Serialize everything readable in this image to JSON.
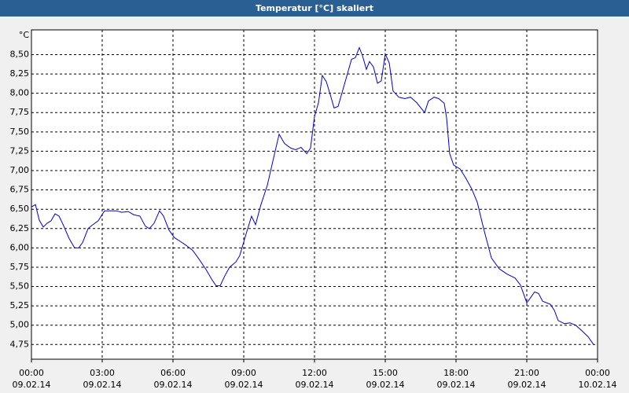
{
  "chart_data": {
    "type": "line",
    "title": "Temperatur [°C] skaliert",
    "y_unit": "°C",
    "x": [
      0,
      0.17,
      0.33,
      0.5,
      0.67,
      0.83,
      1,
      1.17,
      1.33,
      1.6,
      1.83,
      2,
      2.17,
      2.4,
      2.6,
      2.83,
      3.1,
      3.33,
      3.6,
      3.83,
      4.1,
      4.33,
      4.6,
      4.83,
      5,
      5.2,
      5.43,
      5.6,
      5.83,
      6.07,
      6.33,
      6.57,
      6.83,
      7.07,
      7.4,
      7.67,
      7.83,
      8,
      8.2,
      8.4,
      8.67,
      8.83,
      9.07,
      9.33,
      9.5,
      9.73,
      10,
      10.27,
      10.5,
      10.73,
      11,
      11.2,
      11.43,
      11.67,
      11.83,
      12,
      12.17,
      12.33,
      12.5,
      12.67,
      12.83,
      13,
      13.33,
      13.57,
      13.73,
      13.9,
      14.03,
      14.2,
      14.33,
      14.5,
      14.67,
      14.83,
      15,
      15.17,
      15.33,
      15.57,
      15.83,
      16.07,
      16.33,
      16.67,
      16.83,
      17.07,
      17.27,
      17.5,
      17.6,
      17.73,
      17.9,
      18.17,
      18.4,
      18.67,
      18.9,
      19.17,
      19.5,
      19.83,
      20.17,
      20.5,
      20.73,
      21,
      21.17,
      21.33,
      21.5,
      21.67,
      22,
      22.17,
      22.33,
      22.6,
      22.83,
      23.07,
      23.33,
      23.6,
      23.83
    ],
    "series": [
      {
        "name": "Temperatur",
        "color": "#0000cc",
        "values": [
          6.53,
          6.56,
          6.36,
          6.27,
          6.32,
          6.35,
          6.44,
          6.41,
          6.31,
          6.12,
          6.0,
          6.0,
          6.07,
          6.25,
          6.3,
          6.35,
          6.48,
          6.48,
          6.48,
          6.46,
          6.47,
          6.43,
          6.41,
          6.28,
          6.25,
          6.32,
          6.48,
          6.41,
          6.23,
          6.13,
          6.08,
          6.03,
          5.97,
          5.87,
          5.72,
          5.58,
          5.51,
          5.51,
          5.64,
          5.75,
          5.82,
          5.9,
          6.15,
          6.41,
          6.3,
          6.56,
          6.81,
          7.17,
          7.47,
          7.35,
          7.29,
          7.27,
          7.3,
          7.22,
          7.29,
          7.7,
          7.88,
          8.23,
          8.15,
          7.98,
          7.81,
          7.83,
          8.18,
          8.44,
          8.46,
          8.59,
          8.49,
          8.31,
          8.41,
          8.34,
          8.13,
          8.16,
          8.51,
          8.39,
          8.03,
          7.95,
          7.93,
          7.95,
          7.88,
          7.75,
          7.9,
          7.95,
          7.93,
          7.87,
          7.68,
          7.22,
          7.07,
          7.02,
          6.91,
          6.76,
          6.59,
          6.25,
          5.87,
          5.73,
          5.66,
          5.61,
          5.52,
          5.29,
          5.36,
          5.43,
          5.41,
          5.31,
          5.27,
          5.19,
          5.06,
          5.02,
          5.03,
          5.0,
          4.93,
          4.85,
          4.75
        ]
      }
    ],
    "xlim": [
      0,
      24
    ],
    "xticks": [
      {
        "value": 0,
        "label": "00:00"
      },
      {
        "value": 3,
        "label": "03:00"
      },
      {
        "value": 6,
        "label": "06:00"
      },
      {
        "value": 9,
        "label": "09:00"
      },
      {
        "value": 12,
        "label": "12:00"
      },
      {
        "value": 15,
        "label": "15:00"
      },
      {
        "value": 18,
        "label": "18:00"
      },
      {
        "value": 21,
        "label": "21:00"
      },
      {
        "value": 24,
        "label": "00:00"
      }
    ],
    "xtick_dates": [
      "09.02.14",
      "09.02.14",
      "09.02.14",
      "09.02.14",
      "09.02.14",
      "09.02.14",
      "09.02.14",
      "09.02.14",
      "10.02.14"
    ],
    "ylim": [
      4.56,
      8.82
    ],
    "yticks": [
      {
        "value": 4.75,
        "label": "4,75"
      },
      {
        "value": 5,
        "label": "5,00"
      },
      {
        "value": 5.25,
        "label": "5,25"
      },
      {
        "value": 5.5,
        "label": "5,50"
      },
      {
        "value": 5.75,
        "label": "5,75"
      },
      {
        "value": 6,
        "label": "6,00"
      },
      {
        "value": 6.25,
        "label": "6,25"
      },
      {
        "value": 6.5,
        "label": "6,50"
      },
      {
        "value": 6.75,
        "label": "6,75"
      },
      {
        "value": 7,
        "label": "7,00"
      },
      {
        "value": 7.25,
        "label": "7,25"
      },
      {
        "value": 7.5,
        "label": "7,50"
      },
      {
        "value": 7.75,
        "label": "7,75"
      },
      {
        "value": 8,
        "label": "8,00"
      },
      {
        "value": 8.25,
        "label": "8,25"
      },
      {
        "value": 8.5,
        "label": "8,50"
      }
    ],
    "grid": true
  }
}
